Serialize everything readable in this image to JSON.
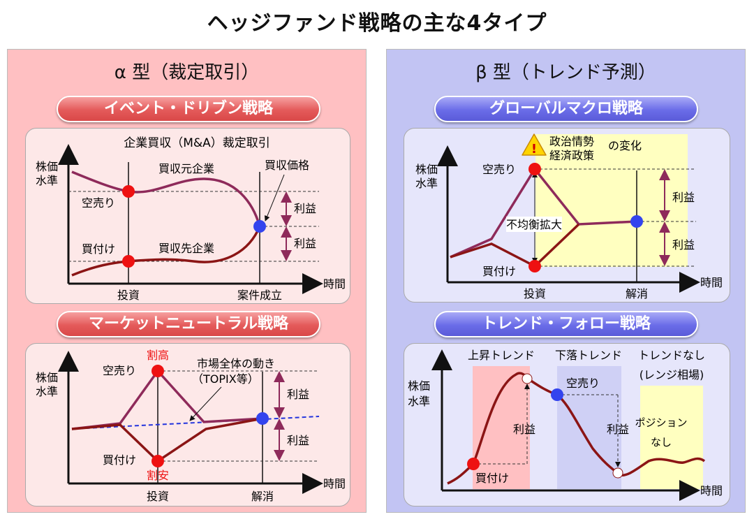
{
  "title": "ヘッジファンド戦略の主な4タイプ",
  "alpha": {
    "heading": "α 型（裁定取引）",
    "event": {
      "pill": "イベント・ドリブン戦略",
      "caption": "企業買収（M&A）裁定取引",
      "ylabel1": "株価",
      "ylabel2": "水準",
      "xlabel": "時間",
      "tick_invest": "投資",
      "tick_deal": "案件成立",
      "acquirer": "買収元企業",
      "target": "買収先企業",
      "short": "空売り",
      "buy": "買付け",
      "price": "買収価格",
      "profit": "利益"
    },
    "market": {
      "pill": "マーケットニュートラル戦略",
      "ylabel1": "株価",
      "ylabel2": "水準",
      "xlabel": "時間",
      "tick_invest": "投資",
      "tick_exit": "解消",
      "short": "空売り",
      "buy": "買付け",
      "expensive": "割高",
      "cheap": "割安",
      "market1": "市場全体の動き",
      "market2": "（TOPIX等）",
      "profit": "利益"
    }
  },
  "beta": {
    "heading": "β 型（トレンド予測）",
    "macro": {
      "pill": "グローバルマクロ戦略",
      "ylabel1": "株価",
      "ylabel2": "水準",
      "xlabel": "時間",
      "tick_invest": "投資",
      "tick_exit": "解消",
      "warn1": "政治情勢",
      "warn2": "経済政策",
      "warn3": "の変化",
      "short": "空売り",
      "buy": "買付け",
      "spread": "不均衡拡大",
      "profit": "利益"
    },
    "trend": {
      "pill": "トレンド・フォロー戦略",
      "ylabel1": "株価",
      "ylabel2": "水準",
      "xlabel": "時間",
      "up": "上昇トレンド",
      "down": "下落トレンド",
      "none1": "トレンドなし",
      "none2": "(レンジ相場)",
      "pos1": "ポジション",
      "pos2": "なし",
      "short": "空売り",
      "buy": "買付け",
      "profit": "利益"
    }
  },
  "colors": {
    "line": "#8b1515",
    "line2": "#8e2a5a",
    "red_dot": "#ee1111",
    "blue_dot": "#3344ee",
    "arrow": "#8e2a5a",
    "highlight_red": "#ffc0c2",
    "highlight_blue": "#cfd0f5",
    "highlight_yellow": "#ffffc0"
  }
}
